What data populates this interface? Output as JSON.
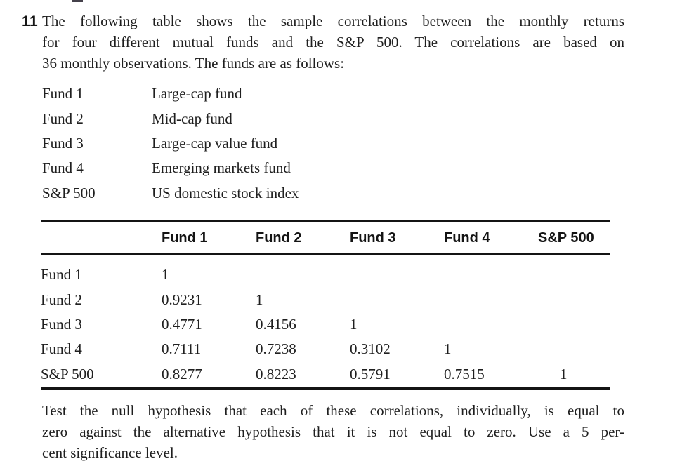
{
  "colors": {
    "text": "#1f1f1f",
    "rule": "#141414",
    "background": "#ffffff"
  },
  "problem": {
    "number": "11",
    "intro_lines": [
      "The following table shows the sample correlations between the monthly returns",
      "for four different mutual funds and the S&P 500. The correlations are based on",
      "36 monthly observations. The funds are as follows:"
    ],
    "funds": [
      {
        "name": "Fund 1",
        "description": "Large-cap fund"
      },
      {
        "name": "Fund 2",
        "description": "Mid-cap fund"
      },
      {
        "name": "Fund 3",
        "description": "Large-cap value fund"
      },
      {
        "name": "Fund 4",
        "description": "Emerging markets fund"
      },
      {
        "name": "S&P 500",
        "description": "US domestic stock index"
      }
    ],
    "table": {
      "headers": [
        "Fund 1",
        "Fund 2",
        "Fund 3",
        "Fund 4",
        "S&P 500"
      ],
      "rows": [
        {
          "label": "Fund 1",
          "values": [
            "1",
            "",
            "",
            "",
            ""
          ]
        },
        {
          "label": "Fund 2",
          "values": [
            "0.9231",
            "1",
            "",
            "",
            ""
          ]
        },
        {
          "label": "Fund 3",
          "values": [
            "0.4771",
            "0.4156",
            "1",
            "",
            ""
          ]
        },
        {
          "label": "Fund 4",
          "values": [
            "0.7111",
            "0.7238",
            "0.3102",
            "1",
            ""
          ]
        },
        {
          "label": "S&P 500",
          "values": [
            "0.8277",
            "0.8223",
            "0.5791",
            "0.7515",
            "1"
          ]
        }
      ]
    },
    "question_lines": [
      "Test the null hypothesis that each of these correlations, individually, is equal to",
      "zero against the alternative hypothesis that it is not equal to zero. Use a 5 per-",
      "cent significance level."
    ]
  }
}
